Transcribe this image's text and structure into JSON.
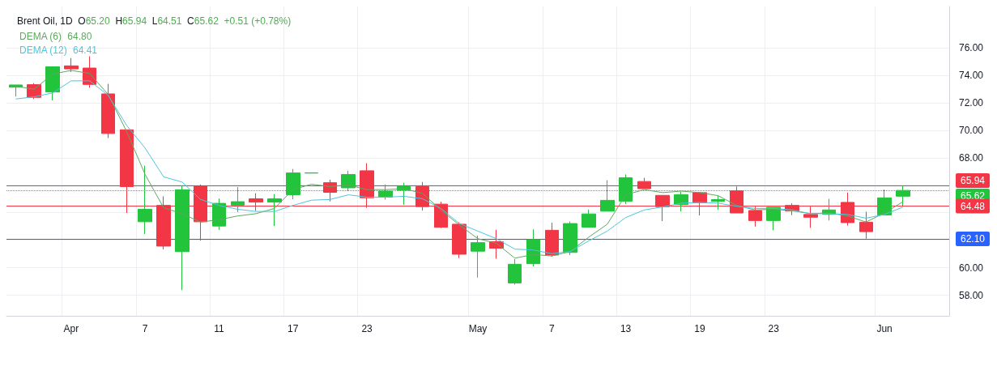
{
  "chart_data": {
    "type": "candlestick",
    "title": "Brent Oil, 1D",
    "annotations": [
      "O65.20",
      "H65.94",
      "L64.51",
      "C65.62",
      "+0.51 (+0.78%)",
      "64.80",
      "64.41"
    ],
    "categories": [
      null,
      null,
      null,
      "Apr",
      null,
      null,
      null,
      "7",
      null,
      null,
      null,
      "11",
      null,
      null,
      null,
      "17",
      null,
      null,
      null,
      "23",
      null,
      null,
      null,
      null,
      null,
      "May",
      null,
      null,
      null,
      "7",
      null,
      null,
      null,
      "13",
      null,
      null,
      null,
      "19",
      null,
      null,
      null,
      "23",
      null,
      null,
      null,
      null,
      null,
      "Jun",
      null
    ],
    "ohlc": [
      [
        73.13,
        73.29,
        72.45,
        73.29
      ],
      [
        73.31,
        73.42,
        72.27,
        72.39
      ],
      [
        72.78,
        74.65,
        72.17,
        74.61
      ],
      [
        74.68,
        75.25,
        74.24,
        74.46
      ],
      [
        74.52,
        75.38,
        73.09,
        73.33
      ],
      [
        72.64,
        73.37,
        69.43,
        69.76
      ],
      [
        70.03,
        70.03,
        63.98,
        65.9
      ],
      [
        63.34,
        67.42,
        62.44,
        64.25
      ],
      [
        64.53,
        65.19,
        61.33,
        61.57
      ],
      [
        61.17,
        65.96,
        58.37,
        65.67
      ],
      [
        65.94,
        66.05,
        61.97,
        63.34
      ],
      [
        63.03,
        65.04,
        62.76,
        64.68
      ],
      [
        64.55,
        65.86,
        64.04,
        64.8
      ],
      [
        65.01,
        65.41,
        64.13,
        64.77
      ],
      [
        64.77,
        65.35,
        63.03,
        65.01
      ],
      [
        65.31,
        67.18,
        64.98,
        66.89
      ],
      [
        66.88,
        66.9,
        66.88,
        66.9
      ],
      [
        66.18,
        66.4,
        64.82,
        65.48
      ],
      [
        65.81,
        67.05,
        65.59,
        66.78
      ],
      [
        67.05,
        67.6,
        64.35,
        65.09
      ],
      [
        65.13,
        66.05,
        64.95,
        65.57
      ],
      [
        65.63,
        66.18,
        64.58,
        65.89
      ],
      [
        65.89,
        66.23,
        64.16,
        64.44
      ],
      [
        64.62,
        64.8,
        62.88,
        62.94
      ],
      [
        63.16,
        63.31,
        60.7,
        60.98
      ],
      [
        61.2,
        62.33,
        59.28,
        61.82
      ],
      [
        61.89,
        62.76,
        60.65,
        61.42
      ],
      [
        58.89,
        60.62,
        58.77,
        60.25
      ],
      [
        60.29,
        62.79,
        60.1,
        62.04
      ],
      [
        62.72,
        63.27,
        60.8,
        60.92
      ],
      [
        61.11,
        63.36,
        60.92,
        63.21
      ],
      [
        62.95,
        64.22,
        62.95,
        63.91
      ],
      [
        64.11,
        66.36,
        64.11,
        64.9
      ],
      [
        64.84,
        66.78,
        64.62,
        66.54
      ],
      [
        66.27,
        66.54,
        65.75,
        65.75
      ],
      [
        65.26,
        65.26,
        63.39,
        64.44
      ],
      [
        64.6,
        65.53,
        64.09,
        65.31
      ],
      [
        65.46,
        65.46,
        63.8,
        64.73
      ],
      [
        64.82,
        65.23,
        64.22,
        64.95
      ],
      [
        65.59,
        65.9,
        63.98,
        63.98
      ],
      [
        64.16,
        64.44,
        62.99,
        63.43
      ],
      [
        63.43,
        64.4,
        62.72,
        64.4
      ],
      [
        64.53,
        64.68,
        63.82,
        64.13
      ],
      [
        63.87,
        64.44,
        62.9,
        63.67
      ],
      [
        63.89,
        65.01,
        63.43,
        64.2
      ],
      [
        64.75,
        65.46,
        63.06,
        63.28
      ],
      [
        63.31,
        64.07,
        62.11,
        62.62
      ],
      [
        63.83,
        65.68,
        63.83,
        65.08
      ],
      [
        65.2,
        65.94,
        64.51,
        65.62
      ]
    ],
    "colors": [
      "#22c43c",
      "#f23645",
      "#22c43c",
      "#f23645",
      "#f23645",
      "#f23645",
      "#f23645",
      "#22c43c",
      "#f23645",
      "#22c43c",
      "#f23645",
      "#22c43c",
      "#22c43c",
      "#f23645",
      "#22c43c",
      "#22c43c",
      "#22c43c",
      "#f23645",
      "#22c43c",
      "#f23645",
      "#22c43c",
      "#22c43c",
      "#f23645",
      "#f23645",
      "#f23645",
      "#22c43c",
      "#f23645",
      "#22c43c",
      "#22c43c",
      "#f23645",
      "#22c43c",
      "#22c43c",
      "#22c43c",
      "#22c43c",
      "#f23645",
      "#f23645",
      "#22c43c",
      "#f23645",
      "#22c43c",
      "#f23645",
      "#f23645",
      "#22c43c",
      "#f23645",
      "#f23645",
      "#22c43c",
      "#f23645",
      "#f23645",
      "#22c43c",
      "#22c43c"
    ],
    "series": [
      {
        "type": "line",
        "name": "DEMA (6)",
        "color": "#5fa85f",
        "values": [
          73.2,
          72.98,
          74.08,
          74.35,
          74.13,
          72.6,
          69.91,
          66.78,
          64.36,
          63.93,
          63.32,
          63.49,
          63.76,
          63.93,
          64.31,
          65.68,
          66.07,
          65.9,
          66.01,
          65.68,
          65.68,
          65.74,
          65.41,
          64.2,
          63.1,
          62.11,
          61.78,
          60.69,
          60.96,
          60.85,
          61.18,
          62.22,
          63.16,
          65.3,
          65.68,
          65.46,
          65.57,
          65.46,
          65.24,
          64.53,
          64.2,
          64.25,
          64.14,
          63.93,
          63.98,
          63.76,
          63.32,
          63.98,
          64.8
        ]
      },
      {
        "type": "line",
        "name": "DEMA (12)",
        "color": "#4dc6dc",
        "values": [
          72.27,
          72.43,
          72.71,
          73.59,
          73.59,
          72.54,
          70.35,
          68.7,
          66.61,
          66.23,
          64.96,
          64.53,
          64.25,
          64.09,
          64.09,
          64.53,
          64.91,
          64.96,
          65.3,
          65.13,
          65.13,
          65.19,
          65.02,
          64.31,
          63.21,
          62.66,
          62.11,
          61.35,
          61.29,
          61.02,
          61.18,
          61.95,
          62.66,
          63.65,
          64.2,
          64.42,
          64.69,
          64.75,
          64.69,
          64.47,
          64.31,
          64.31,
          64.2,
          63.93,
          63.93,
          63.87,
          63.6,
          63.87,
          64.41
        ]
      }
    ],
    "ylim": [
      56.5,
      79
    ],
    "yticks": [
      {
        "value": 58,
        "label": "58.00"
      },
      {
        "value": 60,
        "label": "60.00"
      },
      {
        "value": 62,
        "label": null
      },
      {
        "value": 64,
        "label": null
      },
      {
        "value": 66,
        "label": null
      },
      {
        "value": 68,
        "label": "68.00"
      },
      {
        "value": 70,
        "label": "70.00"
      },
      {
        "value": 72,
        "label": "72.00"
      },
      {
        "value": 74,
        "label": "74.00"
      },
      {
        "value": 76,
        "label": "76.00"
      }
    ],
    "ref_lines": [
      {
        "axis": "y",
        "value": 65.94,
        "label": "65.94",
        "color": "#f23645"
      },
      {
        "axis": "y",
        "value": 65.62,
        "label": "65.62",
        "color": "#22c43c",
        "line_style": "dotted"
      },
      {
        "axis": "y",
        "value": 64.48,
        "label": "64.48",
        "color": "#f23645"
      },
      {
        "axis": "y",
        "value": 62.1,
        "label": "62.10",
        "color": "#2962ff"
      }
    ],
    "grid": true,
    "legend": "top left"
  }
}
